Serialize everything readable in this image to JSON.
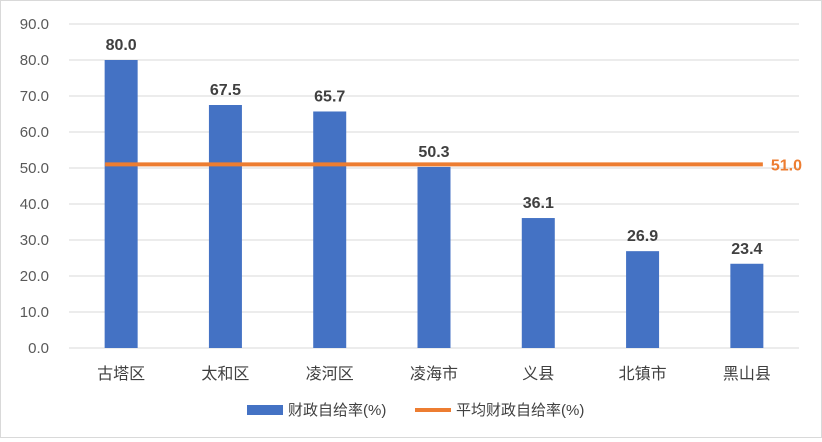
{
  "chart_data": {
    "type": "bar",
    "categories": [
      "古塔区",
      "太和区",
      "凌河区",
      "凌海市",
      "义县",
      "北镇市",
      "黑山县"
    ],
    "series": [
      {
        "name": "财政自给率(%)",
        "type": "bar",
        "values": [
          80.0,
          67.5,
          65.7,
          50.3,
          36.1,
          26.9,
          23.4
        ],
        "color": "#4472c4"
      },
      {
        "name": "平均财政自给率(%)",
        "type": "line",
        "values": [
          51.0,
          51.0,
          51.0,
          51.0,
          51.0,
          51.0,
          51.0
        ],
        "color": "#ed7d31",
        "end_label": "51.0"
      }
    ],
    "ylim": [
      0,
      90
    ],
    "yticks": [
      "0.0",
      "10.0",
      "20.0",
      "30.0",
      "40.0",
      "50.0",
      "60.0",
      "70.0",
      "80.0",
      "90.0"
    ],
    "data_labels": [
      "80.0",
      "67.5",
      "65.7",
      "50.3",
      "36.1",
      "26.9",
      "23.4"
    ],
    "grid": true,
    "legend_position": "bottom"
  }
}
